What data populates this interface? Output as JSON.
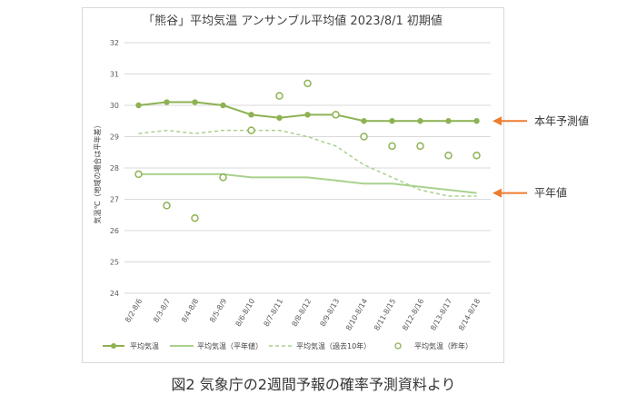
{
  "chart_data": {
    "type": "line",
    "title": "「熊谷」平均気温 アンサンブル平均値 2023/8/1 初期値",
    "ylabel": "気温℃（地域の場合は平年差）",
    "xlabel": "",
    "ylim": [
      24,
      32
    ],
    "yticks": [
      "24",
      "25",
      "26",
      "27",
      "28",
      "29",
      "30",
      "31",
      "32"
    ],
    "grid": true,
    "legend_position": "bottom",
    "categories": [
      "8/2-8/6",
      "8/3-8/7",
      "8/4-8/8",
      "8/5-8/9",
      "8/6-8/10",
      "8/7-8/11",
      "8/8-8/12",
      "8/9-8/13",
      "8/10-8/14",
      "8/11-8/15",
      "8/12-8/16",
      "8/13-8/17",
      "8/14-8/18"
    ],
    "series": [
      {
        "name": "平均気温",
        "style": "line-markers",
        "color": "#8db253",
        "values": [
          30.0,
          30.1,
          30.1,
          30.0,
          29.7,
          29.6,
          29.7,
          29.7,
          29.5,
          29.5,
          29.5,
          29.5,
          29.5
        ]
      },
      {
        "name": "平均気温（平年値）",
        "style": "line",
        "color": "#a9d18e",
        "values": [
          27.8,
          27.8,
          27.8,
          27.8,
          27.7,
          27.7,
          27.7,
          27.6,
          27.5,
          27.5,
          27.4,
          27.3,
          27.2
        ]
      },
      {
        "name": "平均気温（過去10年）",
        "style": "dashed",
        "color": "#a9d18e",
        "values": [
          29.1,
          29.2,
          29.1,
          29.2,
          29.2,
          29.2,
          29.0,
          28.7,
          28.1,
          27.7,
          27.3,
          27.1,
          27.1
        ]
      },
      {
        "name": "平均気温（昨年）",
        "style": "open-markers",
        "color": "#8db253",
        "values": [
          27.8,
          26.8,
          26.4,
          27.7,
          29.2,
          30.3,
          30.7,
          29.7,
          29.0,
          28.7,
          28.7,
          28.4,
          28.4
        ]
      }
    ]
  },
  "annotations": {
    "forecast": {
      "label": "本年予測値",
      "color": "#ed7d31",
      "target_value": 29.5
    },
    "normal": {
      "label": "平年値",
      "color": "#ed7d31",
      "target_value": 27.2
    }
  },
  "caption": "図2 気象庁の2週間予報の確率予測資料より"
}
